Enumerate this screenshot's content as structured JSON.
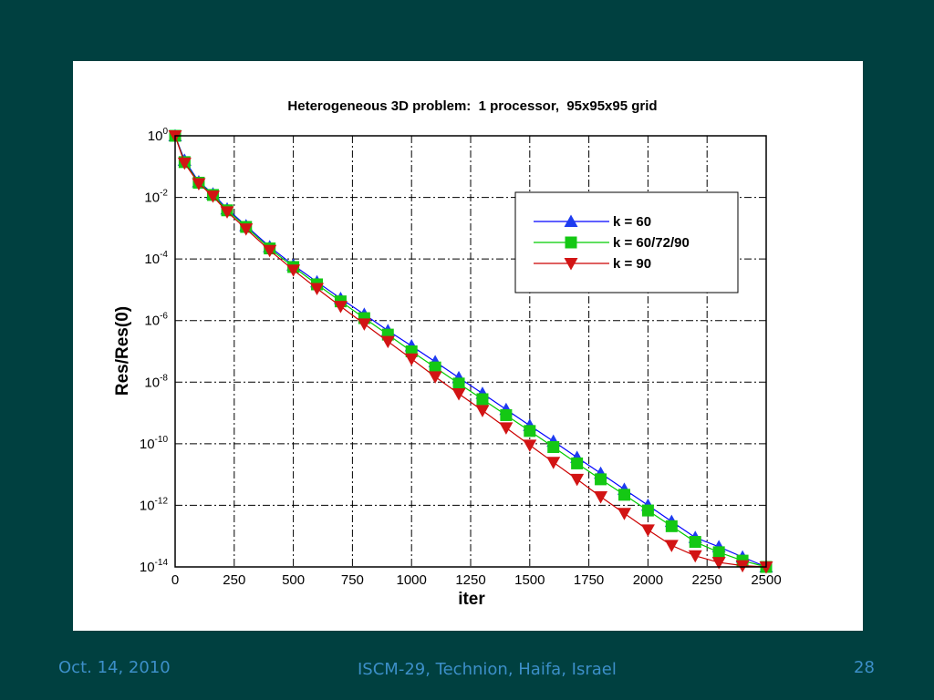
{
  "footer": {
    "date": "Oct. 14, 2010",
    "venue": "ISCM-29, Technion, Haifa, Israel",
    "page": "28"
  },
  "chart_data": {
    "type": "line",
    "title": "Heterogeneous 3D problem:  1 processor,  95x95x95 grid",
    "xlabel": "iter",
    "ylabel": "Res/Res(0)",
    "xlim": [
      0,
      2500
    ],
    "ylim": [
      1e-14,
      1
    ],
    "yscale": "log",
    "grid": true,
    "legend": "top-right",
    "xticks": [
      "0",
      "250",
      "500",
      "750",
      "1000",
      "1250",
      "1500",
      "1750",
      "2000",
      "2250",
      "2500"
    ],
    "yticks": [
      {
        "base": "10",
        "exp": "0"
      },
      {
        "base": "10",
        "exp": "-2"
      },
      {
        "base": "10",
        "exp": "-4"
      },
      {
        "base": "10",
        "exp": "-6"
      },
      {
        "base": "10",
        "exp": "-8"
      },
      {
        "base": "10",
        "exp": "-10"
      },
      {
        "base": "10",
        "exp": "-12"
      },
      {
        "base": "10",
        "exp": "-14"
      }
    ],
    "series": [
      {
        "name": "k = 60",
        "color": "#0000ff",
        "marker_color": "#1e3cf0",
        "marker": "triangle-up",
        "x": [
          0,
          40,
          100,
          160,
          220,
          300,
          400,
          500,
          600,
          700,
          800,
          900,
          1000,
          1100,
          1200,
          1300,
          1400,
          1500,
          1600,
          1700,
          1800,
          1900,
          2000,
          2100,
          2200,
          2300,
          2400,
          2500
        ],
        "y": [
          1,
          0.16,
          0.032,
          0.013,
          0.0042,
          0.0012,
          0.00025,
          6.3e-05,
          1.8e-05,
          5.2e-06,
          1.6e-06,
          4.7e-07,
          1.5e-07,
          4.6e-08,
          1.4e-08,
          4.3e-09,
          1.3e-09,
          3.9e-10,
          1.2e-10,
          3.6e-11,
          1.1e-11,
          3.3e-12,
          1e-12,
          3e-13,
          9e-14,
          4.5e-14,
          2.1e-14,
          1e-14
        ]
      },
      {
        "name": "k = 60/72/90",
        "color": "#00cc00",
        "marker_color": "#14c814",
        "marker": "square",
        "x": [
          0,
          40,
          100,
          160,
          220,
          300,
          400,
          500,
          600,
          700,
          800,
          900,
          1000,
          1100,
          1200,
          1300,
          1400,
          1500,
          1600,
          1700,
          1800,
          1900,
          2000,
          2100,
          2200,
          2300,
          2400,
          2500
        ],
        "y": [
          1,
          0.14,
          0.03,
          0.012,
          0.0038,
          0.0011,
          0.00022,
          5.5e-05,
          1.5e-05,
          4.2e-06,
          1.2e-06,
          3.5e-07,
          1e-07,
          3e-08,
          9e-09,
          2.8e-09,
          8.5e-10,
          2.6e-10,
          7.8e-11,
          2.3e-11,
          7e-12,
          2.2e-12,
          6.8e-13,
          2.1e-13,
          6.5e-14,
          3e-14,
          1.6e-14,
          1e-14
        ]
      },
      {
        "name": "k = 90",
        "color": "#cc0000",
        "marker_color": "#d21414",
        "marker": "triangle-down",
        "x": [
          0,
          40,
          100,
          160,
          220,
          300,
          400,
          500,
          600,
          700,
          800,
          900,
          1000,
          1100,
          1200,
          1300,
          1400,
          1500,
          1600,
          1700,
          1800,
          1900,
          2000,
          2100,
          2200,
          2300,
          2400,
          2500
        ],
        "y": [
          1,
          0.13,
          0.028,
          0.011,
          0.0034,
          0.00095,
          0.00019,
          4.4e-05,
          1.1e-05,
          2.9e-06,
          7.8e-07,
          2.1e-07,
          5.7e-08,
          1.5e-08,
          4.2e-09,
          1.2e-09,
          3.3e-10,
          9e-11,
          2.5e-11,
          7e-12,
          1.9e-12,
          5.5e-13,
          1.6e-13,
          5e-14,
          2.3e-14,
          1.4e-14,
          1.1e-14,
          1e-14
        ]
      }
    ]
  }
}
